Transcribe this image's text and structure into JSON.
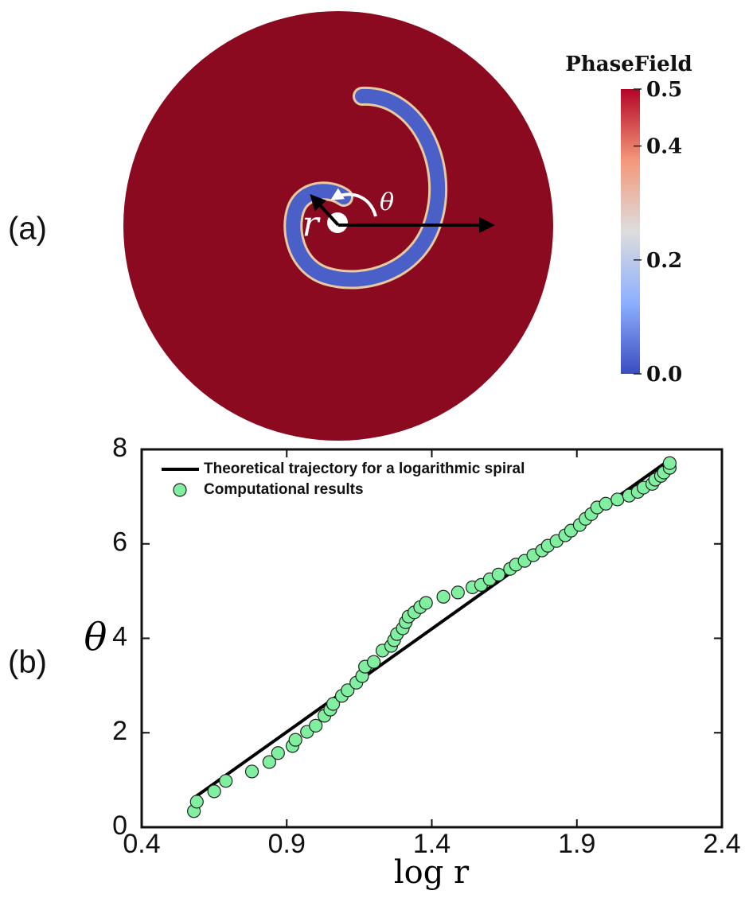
{
  "chart_data": [
    {
      "type": "colormap",
      "label": "(a)",
      "title": "PhaseField",
      "annotations": [
        "r",
        "θ"
      ],
      "clim": [
        0,
        0.5
      ],
      "cticks": [
        {
          "value": 0,
          "label": "0.0"
        },
        0.2,
        0.4,
        0.5
      ],
      "colors": [
        "#3b4cc0",
        "#8db0fe",
        "#dddddd",
        "#f4987a",
        "#b40426"
      ]
    },
    {
      "type": "scatter",
      "label": "(b)",
      "xlabel": "log r",
      "ylabel": "θ",
      "xlim": [
        0.4,
        2.4
      ],
      "ylim": [
        0,
        8
      ],
      "xticks": [
        0.4,
        0.9,
        1.4,
        1.9,
        2.4
      ],
      "yticks": [
        0,
        2,
        4,
        6,
        8
      ],
      "legend": "upper left",
      "series": [
        {
          "name": "Theoretical trajectory for a logarithmic spiral",
          "kind": "line",
          "color": "#000000",
          "x": [
            0.58,
            2.22
          ],
          "values": [
            0.62,
            7.78
          ]
        },
        {
          "name": "Computational results",
          "kind": "marker",
          "color": "#80f0a0",
          "x": [
            0.58,
            0.59,
            0.65,
            0.69,
            0.78,
            0.84,
            0.87,
            0.92,
            0.93,
            0.97,
            1.0,
            1.03,
            1.05,
            1.06,
            1.09,
            1.11,
            1.14,
            1.16,
            1.17,
            1.2,
            1.23,
            1.26,
            1.27,
            1.28,
            1.3,
            1.31,
            1.32,
            1.34,
            1.36,
            1.38,
            1.44,
            1.49,
            1.54,
            1.57,
            1.6,
            1.63,
            1.67,
            1.69,
            1.72,
            1.75,
            1.78,
            1.8,
            1.83,
            1.86,
            1.88,
            1.91,
            1.93,
            1.95,
            1.97,
            2.0,
            2.04,
            2.08,
            2.11,
            2.13,
            2.16,
            2.17,
            2.19,
            2.2,
            2.22,
            2.22
          ],
          "values": [
            0.34,
            0.54,
            0.76,
            0.98,
            1.18,
            1.38,
            1.57,
            1.72,
            1.85,
            2.02,
            2.15,
            2.36,
            2.49,
            2.61,
            2.78,
            2.9,
            3.06,
            3.2,
            3.4,
            3.5,
            3.74,
            3.84,
            3.96,
            4.09,
            4.21,
            4.34,
            4.46,
            4.55,
            4.66,
            4.75,
            4.88,
            4.97,
            5.08,
            5.13,
            5.25,
            5.35,
            5.47,
            5.56,
            5.64,
            5.76,
            5.86,
            5.96,
            6.06,
            6.18,
            6.28,
            6.4,
            6.53,
            6.63,
            6.77,
            6.85,
            6.94,
            7.02,
            7.1,
            7.19,
            7.27,
            7.36,
            7.44,
            7.51,
            7.61,
            7.71
          ]
        }
      ]
    }
  ]
}
